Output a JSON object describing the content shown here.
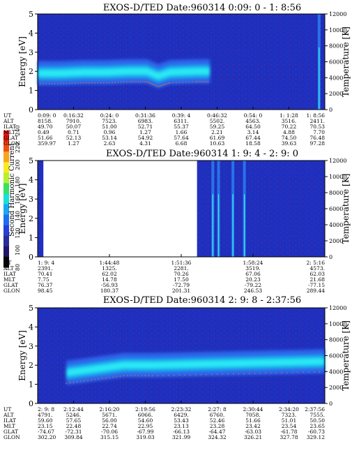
{
  "colorbar": {
    "label": "Second Harmonic Current",
    "ticks": [
      "240",
      "220",
      "200",
      "180",
      "160",
      "140",
      "120",
      "100",
      "80"
    ],
    "colors": [
      "#e8170f",
      "#f44c10",
      "#f7a51a",
      "#f9ea1d",
      "#b7f02c",
      "#36e25f",
      "#18e0d6",
      "#1aa7f2",
      "#1f6df0",
      "#2440d8",
      "#2a2c9b",
      "#211666",
      "#070707"
    ]
  },
  "chart_data": [
    {
      "type": "heatmap",
      "title": "EXOS-D/TED   Date:960314  0:09: 0 - 1: 8:56",
      "ylabel": "Energy [eV]",
      "ylabel_right": "Temperature [K]",
      "ylim": [
        0,
        5
      ],
      "ylim_right": [
        0,
        12000
      ],
      "yticks": [
        "0",
        "1",
        "2",
        "3",
        "4",
        "5"
      ],
      "yticks_right": [
        "0",
        "2000",
        "4000",
        "6000",
        "8000",
        "10000",
        "12000"
      ],
      "band": [
        [
          0,
          1.9
        ],
        [
          0.08,
          1.9
        ],
        [
          0.16,
          1.95
        ],
        [
          0.24,
          1.95
        ],
        [
          0.32,
          2.0
        ],
        [
          0.38,
          2.0
        ],
        [
          0.42,
          1.75
        ],
        [
          0.46,
          1.95
        ],
        [
          0.55,
          2.0
        ],
        [
          0.6,
          2.0
        ]
      ],
      "gap": [],
      "spikes": [
        0.98
      ],
      "table": {
        "labels": [
          "UT",
          "ALT",
          "ILAT",
          "MLT",
          "GLAT",
          "GLON"
        ],
        "columns": [
          [
            "0:09: 0",
            "8158.",
            "49.70",
            "0.49",
            "51.66",
            "359.97"
          ],
          [
            "0:16:32",
            "7910.",
            "50.07",
            "0.71",
            "52.13",
            "1.27"
          ],
          [
            "0:24: 0",
            "7523.",
            "51.00",
            "0.96",
            "53.14",
            "2.63"
          ],
          [
            "0:31:36",
            "6983.",
            "52.71",
            "1.27",
            "54.92",
            "4.31"
          ],
          [
            "0:39: 4",
            "6311.",
            "55.37",
            "1.66",
            "57.64",
            "6.68"
          ],
          [
            "0:46:32",
            "5502.",
            "59.25",
            "2.21",
            "61.69",
            "10.63"
          ],
          [
            "0:54: 0",
            "4563.",
            "64.50",
            "3.14",
            "67.44",
            "18.58"
          ],
          [
            "1: 1:28",
            "3516.",
            "70.22",
            "4.88",
            "74.50",
            "39.63"
          ],
          [
            "1: 8:56",
            "2411.",
            "70.53",
            "7.70",
            "76.48",
            "97.28"
          ]
        ]
      }
    },
    {
      "type": "heatmap",
      "title": "EXOS-D/TED   Date:960314  1: 9: 4 - 2: 9: 0",
      "ylabel": "Energy [eV]",
      "ylabel_right": "Temperature [K]",
      "ylim": [
        0,
        5
      ],
      "ylim_right": [
        0,
        12000
      ],
      "yticks": [
        "0",
        "1",
        "2",
        "3",
        "4",
        "5"
      ],
      "yticks_right": [
        "0",
        "2000",
        "4000",
        "6000",
        "8000",
        "10000",
        "12000"
      ],
      "band": [],
      "gap": [
        [
          0.02,
          0.555
        ]
      ],
      "spikes": [
        0.61,
        0.63,
        0.68,
        0.72
      ],
      "table": {
        "labels": [
          "UT",
          "ALT",
          "ILAT",
          "MLT",
          "GLAT",
          "GLON"
        ],
        "columns": [
          [
            "1: 9: 4",
            "2391.",
            "70.41",
            "7.75",
            "76.37",
            "98.45"
          ],
          [
            "1:44:48",
            "1325.",
            "62.02",
            "14.78",
            "-56.93",
            "180.37"
          ],
          [
            "1:51:36",
            "2281.",
            "70.26",
            "17.50",
            "-72.79",
            "201.31"
          ],
          [
            "1:58:24",
            "3519.",
            "67.06",
            "20.23",
            "-79.22",
            "246.53"
          ],
          [
            "2: 5:16",
            "4573.",
            "62.03",
            "21.68",
            "-77.15",
            "289.44"
          ]
        ]
      }
    },
    {
      "type": "heatmap",
      "title": "EXOS-D/TED   Date:960314  2: 9: 8 - 2:37:56",
      "ylabel": "Energy [eV]",
      "ylabel_right": "Temperature [K]",
      "ylim": [
        0,
        5
      ],
      "ylim_right": [
        0,
        12000
      ],
      "yticks": [
        "0",
        "1",
        "2",
        "3",
        "4",
        "5"
      ],
      "yticks_right": [
        "0",
        "2000",
        "4000",
        "6000",
        "8000",
        "10000",
        "12000"
      ],
      "band": [
        [
          0.1,
          1.6
        ],
        [
          0.2,
          1.8
        ],
        [
          0.3,
          2.0
        ],
        [
          0.4,
          2.0
        ],
        [
          0.55,
          2.05
        ],
        [
          0.7,
          2.1
        ],
        [
          0.85,
          2.15
        ],
        [
          1.0,
          2.2
        ]
      ],
      "gap": [],
      "spikes": [],
      "table": {
        "labels": [
          "UT",
          "ALT",
          "ILAT",
          "MLT",
          "GLAT",
          "GLON"
        ],
        "columns": [
          [
            "2: 9: 8",
            "4791.",
            "59.60",
            "23.15",
            "-74.67",
            "302.20"
          ],
          [
            "2:12:44",
            "5246.",
            "57.65",
            "22.48",
            "-72.31",
            "309.84"
          ],
          [
            "2:16:20",
            "5671.",
            "56.00",
            "22.74",
            "-70.06",
            "315.15"
          ],
          [
            "2:19:56",
            "6066.",
            "54.60",
            "22.95",
            "-67.99",
            "319.03"
          ],
          [
            "2:23:32",
            "6429.",
            "53.43",
            "23.13",
            "-66.13",
            "321.99"
          ],
          [
            "2:27: 8",
            "6760.",
            "52.46",
            "23.28",
            "-64.47",
            "324.32"
          ],
          [
            "2:30:44",
            "7058.",
            "51.66",
            "23.42",
            "-63.03",
            "326.21"
          ],
          [
            "2:34:20",
            "7323.",
            "51.01",
            "23.54",
            "-61.78",
            "327.78"
          ],
          [
            "2:37:56",
            "7555.",
            "50.50",
            "23.65",
            "-60.73",
            "329.12"
          ]
        ]
      }
    }
  ]
}
